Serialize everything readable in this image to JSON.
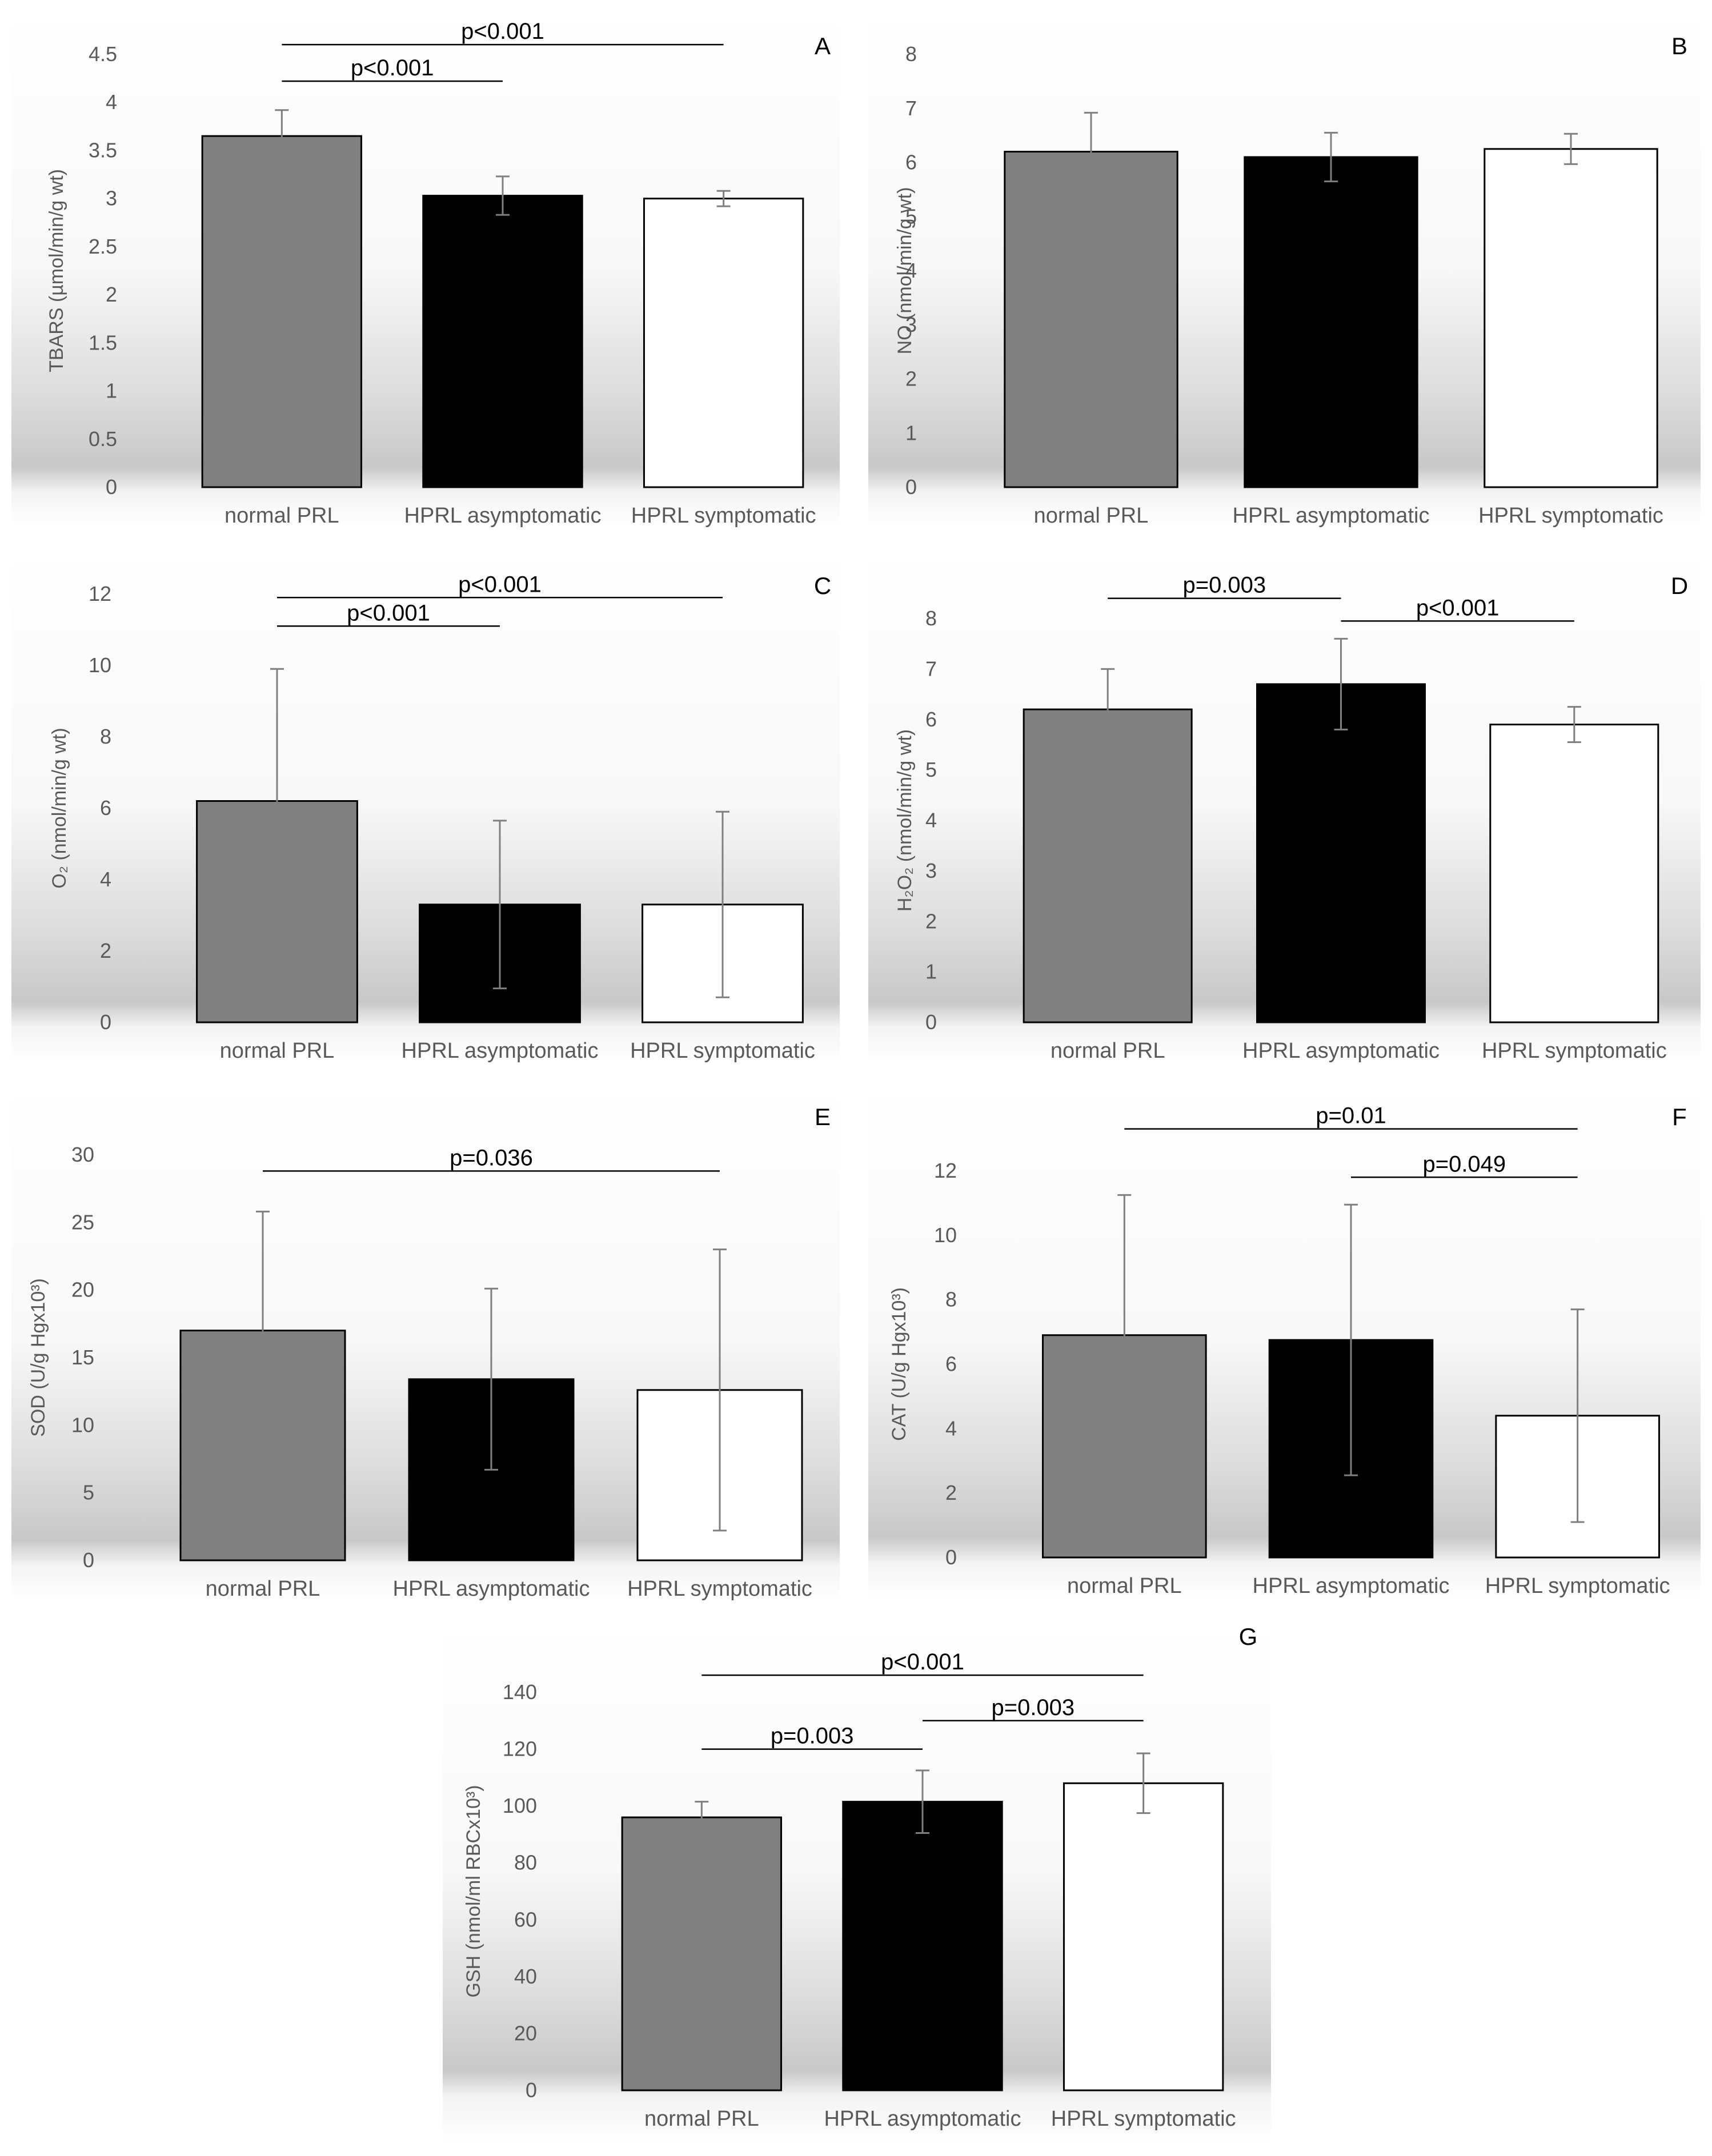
{
  "colors": {
    "normal": "#808080",
    "asymptomatic": "#000000",
    "symptomatic": "#ffffff",
    "error": "#7f7f7f"
  },
  "chart_data": [
    {
      "panel": "A",
      "type": "bar",
      "ylabel": "TBARS (µmol/min/g wt)",
      "categories": [
        "normal PRL",
        "HPRL asymptomatic",
        "HPRL symptomatic"
      ],
      "values": [
        3.65,
        3.03,
        3.0
      ],
      "errors": [
        0.27,
        0.2,
        0.08
      ],
      "ylim": [
        0,
        4.5
      ],
      "ticks": [
        "0",
        "0.5",
        "1",
        "1.5",
        "2",
        "2.5",
        "3",
        "3.5",
        "4",
        "4.5"
      ],
      "sig": [
        {
          "from": 0,
          "to": 1,
          "level": 4.22,
          "text": "p<0.001"
        },
        {
          "from": 0,
          "to": 2,
          "level": 4.6,
          "text": "p<0.001"
        }
      ]
    },
    {
      "panel": "B",
      "type": "bar",
      "ylabel": "NO (nmol/min/g wt)",
      "categories": [
        "normal PRL",
        "HPRL asymptomatic",
        "HPRL symptomatic"
      ],
      "values": [
        6.2,
        6.1,
        6.25
      ],
      "errors": [
        0.72,
        0.45,
        0.28
      ],
      "ylim": [
        0,
        8
      ],
      "ticks": [
        "0",
        "1",
        "2",
        "3",
        "4",
        "5",
        "6",
        "7",
        "8"
      ],
      "sig": []
    },
    {
      "panel": "C",
      "type": "bar",
      "ylabel": "O₂ (nmol/min/g wt)",
      "categories": [
        "normal PRL",
        "HPRL asymptomatic",
        "HPRL symptomatic"
      ],
      "values": [
        6.2,
        3.3,
        3.3
      ],
      "errors": [
        3.7,
        2.35,
        2.6
      ],
      "ylim": [
        0,
        12
      ],
      "ticks": [
        "0",
        "2",
        "4",
        "6",
        "8",
        "10",
        "12"
      ],
      "sig": [
        {
          "from": 0,
          "to": 1,
          "level": 11.1,
          "text": "p<0.001"
        },
        {
          "from": 0,
          "to": 2,
          "level": 11.9,
          "text": "p<0.001"
        }
      ]
    },
    {
      "panel": "D",
      "type": "bar",
      "ylabel": "H₂O₂ (nmol/min/g wt)",
      "categories": [
        "normal PRL",
        "HPRL asymptomatic",
        "HPRL symptomatic"
      ],
      "values": [
        6.2,
        6.7,
        5.9
      ],
      "errors": [
        0.8,
        0.9,
        0.35
      ],
      "ylim": [
        0,
        8
      ],
      "ticks": [
        "0",
        "1",
        "2",
        "3",
        "4",
        "5",
        "6",
        "7",
        "8"
      ],
      "sig": [
        {
          "from": 0,
          "to": 1,
          "level": 8.4,
          "text": "p=0.003"
        },
        {
          "from": 1,
          "to": 2,
          "level": 7.95,
          "text": "p<0.001"
        }
      ]
    },
    {
      "panel": "E",
      "type": "bar",
      "ylabel": "SOD (U/g Hgx10³)",
      "categories": [
        "normal PRL",
        "HPRL asymptomatic",
        "HPRL symptomatic"
      ],
      "values": [
        17.0,
        13.4,
        12.6
      ],
      "errors": [
        8.8,
        6.7,
        10.4
      ],
      "ylim": [
        0,
        30
      ],
      "ticks": [
        "0",
        "5",
        "10",
        "15",
        "20",
        "25",
        "30"
      ],
      "sig": [
        {
          "from": 0,
          "to": 2,
          "level": 28.8,
          "text": "p=0.036"
        }
      ]
    },
    {
      "panel": "F",
      "type": "bar",
      "ylabel": "CAT (U/g Hgx10³)",
      "categories": [
        "normal PRL",
        "HPRL asymptomatic",
        "HPRL symptomatic"
      ],
      "values": [
        6.9,
        6.75,
        4.4
      ],
      "errors": [
        4.35,
        4.2,
        3.3
      ],
      "ylim": [
        0,
        12
      ],
      "ticks": [
        "0",
        "2",
        "4",
        "6",
        "8",
        "10",
        "12"
      ],
      "sig": [
        {
          "from": 0,
          "to": 2,
          "level": 13.3,
          "text": "p=0.01"
        },
        {
          "from": 1,
          "to": 2,
          "level": 11.8,
          "text": "p=0.049"
        }
      ]
    },
    {
      "panel": "G",
      "type": "bar",
      "ylabel": "GSH (nmol/ml RBCx10³)",
      "categories": [
        "normal PRL",
        "HPRL asymptomatic",
        "HPRL symptomatic"
      ],
      "values": [
        96,
        101.5,
        108
      ],
      "errors": [
        5.5,
        11,
        10.5
      ],
      "ylim": [
        0,
        140
      ],
      "ticks": [
        "0",
        "20",
        "40",
        "60",
        "80",
        "100",
        "120",
        "140"
      ],
      "sig": [
        {
          "from": 0,
          "to": 1,
          "level": 120,
          "text": "p=0.003"
        },
        {
          "from": 1,
          "to": 2,
          "level": 130,
          "text": "p=0.003"
        },
        {
          "from": 0,
          "to": 2,
          "level": 146,
          "text": "p<0.001"
        }
      ]
    }
  ]
}
